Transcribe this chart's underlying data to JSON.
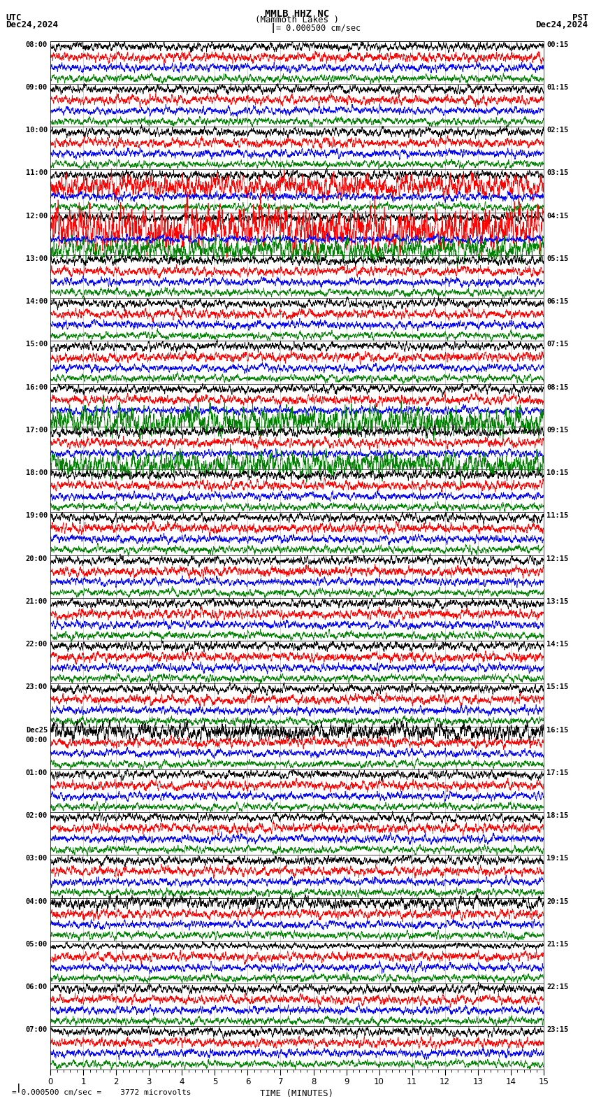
{
  "title_line1": "MMLB HHZ NC",
  "title_line2": "(Mammoth Lakes )",
  "scale_label": "= 0.000500 cm/sec",
  "utc_label": "UTC",
  "utc_date": "Dec24,2024",
  "pst_label": "PST",
  "pst_date": "Dec24,2024",
  "bottom_label": "= 0.000500 cm/sec =    3772 microvolts",
  "xlabel": "TIME (MINUTES)",
  "time_minutes": 15,
  "bg_color": "#ffffff",
  "trace_colors": [
    "black",
    "red",
    "blue",
    "green"
  ],
  "left_times_utc": [
    "08:00",
    "09:00",
    "10:00",
    "11:00",
    "12:00",
    "13:00",
    "14:00",
    "15:00",
    "16:00",
    "17:00",
    "18:00",
    "19:00",
    "20:00",
    "21:00",
    "22:00",
    "23:00",
    "Dec25\n00:00",
    "01:00",
    "02:00",
    "03:00",
    "04:00",
    "05:00",
    "06:00",
    "07:00"
  ],
  "right_times_pst": [
    "00:15",
    "01:15",
    "02:15",
    "03:15",
    "04:15",
    "05:15",
    "06:15",
    "07:15",
    "08:15",
    "09:15",
    "10:15",
    "11:15",
    "12:15",
    "13:15",
    "14:15",
    "15:15",
    "16:15",
    "17:15",
    "18:15",
    "19:15",
    "20:15",
    "21:15",
    "22:15",
    "23:15"
  ],
  "n_rows": 24,
  "traces_per_row": 4,
  "figsize": [
    8.5,
    15.84
  ],
  "dpi": 100,
  "grid_color": "#888888",
  "hline_color": "#000000"
}
